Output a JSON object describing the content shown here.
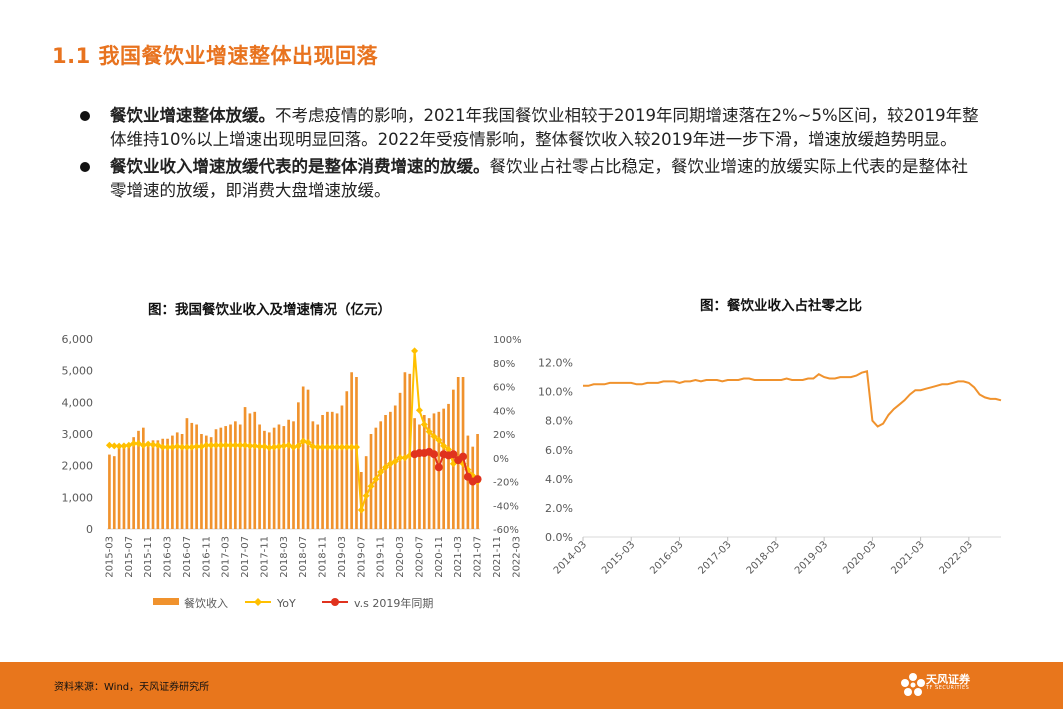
{
  "title": "1.1 我国餐饮业增速整体出现回落",
  "bullets": [
    {
      "bold": "餐饮业增速整体放缓。",
      "text": "不考虑疫情的影响，2021年我国餐饮业相较于2019年同期增速落在2%~5%区间，较2019年整体维持10%以上增速出现明显回落。2022年受疫情影响，整体餐饮收入较2019年进一步下滑，增速放缓趋势明显。"
    },
    {
      "bold": "餐饮业收入增速放缓代表的是整体消费增速的放缓。",
      "text": "餐饮业占社零占比稳定，餐饮业增速的放缓实际上代表的是整体社零增速的放缓，即消费大盘增速放缓。"
    }
  ],
  "chart_data": [
    {
      "type": "bar",
      "title": "图：我国餐饮业收入及增速情况（亿元）",
      "x_tick_labels": [
        "2015-03",
        "2015-07",
        "2015-11",
        "2016-03",
        "2016-07",
        "2016-11",
        "2017-03",
        "2017-07",
        "2017-11",
        "2018-03",
        "2018-07",
        "2018-11",
        "2019-03",
        "2019-07",
        "2019-11",
        "2020-03",
        "2020-07",
        "2020-11",
        "2021-03",
        "2021-07",
        "2021-11",
        "2022-03"
      ],
      "ylim_left": [
        0,
        6000
      ],
      "left_ticks": [
        "0",
        "1,000",
        "2,000",
        "3,000",
        "4,000",
        "5,000",
        "6,000"
      ],
      "ylim_right": [
        -60,
        100
      ],
      "right_ticks": [
        "-60%",
        "-40%",
        "-20%",
        "0%",
        "20%",
        "40%",
        "60%",
        "80%",
        "100%"
      ],
      "legend": [
        "餐饮收入",
        "YoY",
        "v.s 2019年同期"
      ],
      "legend_position": "bottom",
      "colors": {
        "bar": "#F0922D",
        "yoy": "#FFC000",
        "vs2019": "#E0321E"
      },
      "bar_values": [
        2350,
        2300,
        2650,
        2650,
        2700,
        2900,
        3100,
        3200,
        2750,
        2800,
        2800,
        2850,
        2850,
        2950,
        3050,
        3000,
        3500,
        3350,
        3300,
        3000,
        2950,
        2900,
        3150,
        3200,
        3250,
        3300,
        3400,
        3300,
        3850,
        3650,
        3700,
        3300,
        3100,
        3050,
        3200,
        3300,
        3250,
        3450,
        3400,
        4000,
        4500,
        4400,
        3400,
        3300,
        3600,
        3700,
        3700,
        3650,
        3900,
        4350,
        4950,
        4800,
        1800,
        2300,
        3000,
        3200,
        3400,
        3600,
        3700,
        3900,
        4300,
        4950,
        4900,
        3500,
        3300,
        3600,
        3500,
        3650,
        3700,
        3800,
        3950,
        4400,
        4800,
        4800,
        2950,
        2600,
        3000
      ],
      "yoy_values": [
        10.5,
        10,
        9.8,
        10,
        10.5,
        12,
        12,
        10.5,
        11.5,
        11,
        10.5,
        9,
        9,
        9,
        9.5,
        9,
        9,
        9,
        9.5,
        9.5,
        10.5,
        10.5,
        10.5,
        10.5,
        10.5,
        10.5,
        10.5,
        10.5,
        10.5,
        10,
        10,
        9.5,
        9.5,
        8.5,
        9,
        9.5,
        10,
        10.5,
        9,
        10,
        14,
        13,
        9.5,
        9,
        9,
        9,
        9,
        9,
        9,
        9,
        9,
        9,
        -44,
        -32,
        -24,
        -18,
        -12,
        -8,
        -5,
        -3,
        0,
        0,
        2,
        90,
        40,
        28,
        22,
        18,
        15,
        10,
        7,
        -5,
        -2,
        -5,
        -10,
        -15,
        -20
      ],
      "vs2019_values": [
        null,
        null,
        null,
        null,
        null,
        null,
        null,
        null,
        null,
        null,
        null,
        null,
        null,
        null,
        null,
        null,
        null,
        null,
        null,
        null,
        null,
        null,
        null,
        null,
        null,
        null,
        null,
        null,
        null,
        null,
        null,
        null,
        null,
        null,
        null,
        null,
        null,
        null,
        null,
        null,
        null,
        null,
        null,
        null,
        null,
        null,
        null,
        null,
        null,
        null,
        null,
        null,
        null,
        null,
        null,
        null,
        null,
        null,
        null,
        null,
        null,
        null,
        null,
        3,
        4,
        4,
        5,
        3,
        -8,
        3,
        2,
        3,
        -2,
        1,
        -16,
        -20,
        -18
      ]
    },
    {
      "type": "line",
      "title": "图：餐饮业收入占社零之比",
      "x_tick_labels": [
        "2014-03",
        "2015-03",
        "2016-03",
        "2017-03",
        "2018-03",
        "2019-03",
        "2020-03",
        "2021-03",
        "2022-03"
      ],
      "y_tick_labels": [
        "0.0%",
        "2.0%",
        "4.0%",
        "6.0%",
        "8.0%",
        "10.0%",
        "12.0%"
      ],
      "ylim": [
        0,
        13
      ],
      "color": "#F0922D",
      "values": [
        10.4,
        10.4,
        10.5,
        10.5,
        10.5,
        10.6,
        10.6,
        10.6,
        10.6,
        10.6,
        10.5,
        10.5,
        10.6,
        10.6,
        10.6,
        10.7,
        10.7,
        10.7,
        10.6,
        10.7,
        10.7,
        10.8,
        10.7,
        10.8,
        10.8,
        10.8,
        10.7,
        10.8,
        10.8,
        10.8,
        10.9,
        10.9,
        10.8,
        10.8,
        10.8,
        10.8,
        10.8,
        10.8,
        10.9,
        10.8,
        10.8,
        10.8,
        10.9,
        10.9,
        11.2,
        11.0,
        10.9,
        10.9,
        11.0,
        11.0,
        11.0,
        11.1,
        11.3,
        11.4,
        8.0,
        7.6,
        7.8,
        8.4,
        8.8,
        9.1,
        9.4,
        9.8,
        10.1,
        10.1,
        10.2,
        10.3,
        10.4,
        10.5,
        10.5,
        10.6,
        10.7,
        10.7,
        10.6,
        10.3,
        9.8,
        9.6,
        9.5,
        9.5,
        9.4
      ],
      "legend_position": "none"
    }
  ],
  "footer": {
    "source": "资料来源：Wind，天风证券研究所",
    "logo_text": "天风证券",
    "logo_sub": "TF SECURITIES"
  }
}
